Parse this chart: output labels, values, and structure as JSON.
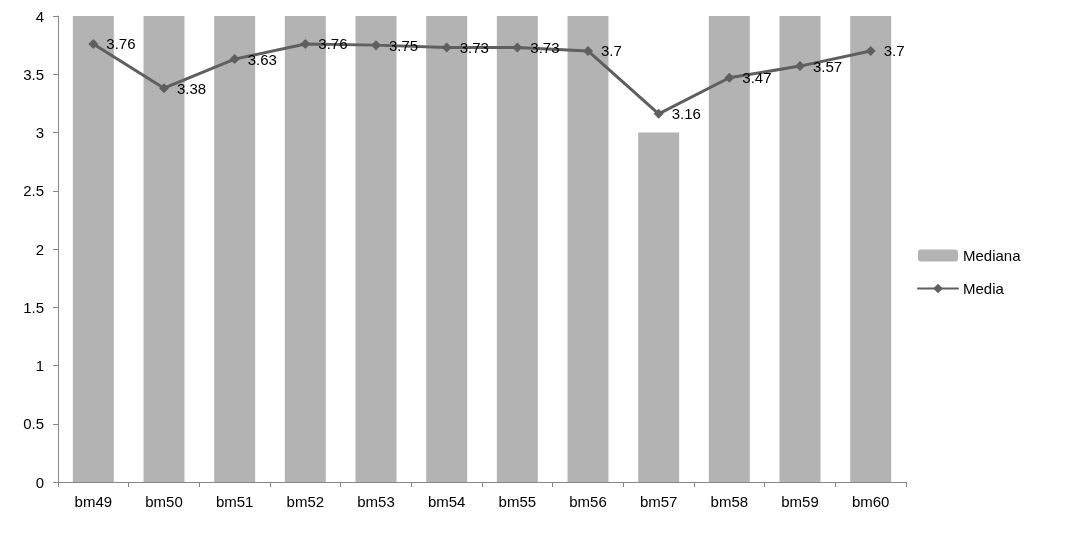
{
  "chart_data": {
    "type": "bar",
    "categories": [
      "bm49",
      "bm50",
      "bm51",
      "bm52",
      "bm53",
      "bm54",
      "bm55",
      "bm56",
      "bm57",
      "bm58",
      "bm59",
      "bm60"
    ],
    "series": [
      {
        "name": "Mediana",
        "color": "#b3b3b3",
        "values": [
          4,
          4,
          4,
          4,
          4,
          4,
          4,
          4,
          3,
          4,
          4,
          4
        ]
      },
      {
        "name": "Media",
        "type": "line",
        "color": "#5f5f5f",
        "marker": "diamond",
        "values": [
          3.76,
          3.38,
          3.63,
          3.76,
          3.75,
          3.73,
          3.73,
          3.7,
          3.16,
          3.47,
          3.57,
          3.7
        ],
        "value_labels": [
          "3.76",
          "3.38",
          "3.63",
          "3.76",
          "3.75",
          "3.73",
          "3.73",
          "3.7",
          "3.16",
          "3.47",
          "3.57",
          "3.7"
        ]
      }
    ],
    "ylim": [
      0,
      4
    ],
    "yticks": [
      0,
      0.5,
      1,
      1.5,
      2,
      2.5,
      3,
      3.5,
      4
    ],
    "grid": false,
    "legend": "right"
  }
}
